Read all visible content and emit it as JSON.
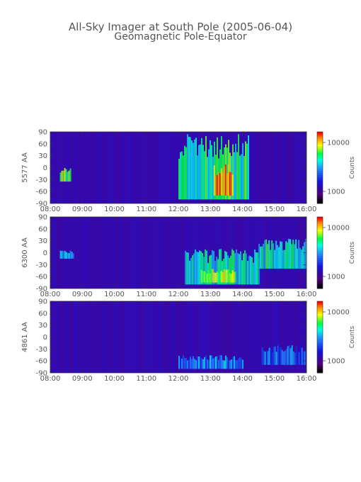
{
  "title": "All-Sky Imager at South Pole (2005-06-04)",
  "subtitle": "Geomagnetic Pole-Equator",
  "chart_data": [
    {
      "type": "heatmap",
      "ylabel": "5577 AA",
      "x_ticks": [
        "08:00",
        "09:00",
        "10:00",
        "11:00",
        "12:00",
        "13:00",
        "14:00",
        "15:00",
        "16:00"
      ],
      "xlim": [
        "08:00",
        "16:00"
      ],
      "y_ticks": [
        90,
        60,
        30,
        0,
        -30,
        -60,
        -90
      ],
      "ylim": [
        -90,
        90
      ],
      "colorbar": {
        "label": "Counts",
        "ticks": [
          "10000",
          "1000"
        ],
        "scale": "log"
      },
      "features": [
        {
          "t0": 8.3,
          "t1": 8.65,
          "lat0": -35,
          "lat1": 0,
          "level": 0.75
        },
        {
          "t0": 12.0,
          "t1": 14.2,
          "lat0": -80,
          "lat1": 90,
          "level": 0.65
        },
        {
          "t0": 13.1,
          "t1": 13.7,
          "lat0": -70,
          "lat1": 10,
          "level": 0.9
        }
      ]
    },
    {
      "type": "heatmap",
      "ylabel": "6300 AA",
      "x_ticks": [
        "08:00",
        "09:00",
        "10:00",
        "11:00",
        "12:00",
        "13:00",
        "14:00",
        "15:00",
        "16:00"
      ],
      "xlim": [
        "08:00",
        "16:00"
      ],
      "y_ticks": [
        90,
        60,
        30,
        0,
        -30,
        -60,
        -90
      ],
      "ylim": [
        -90,
        90
      ],
      "colorbar": {
        "label": "Counts",
        "ticks": [
          "10000",
          "1000"
        ],
        "scale": "log"
      },
      "features": [
        {
          "t0": 8.3,
          "t1": 8.7,
          "lat0": -15,
          "lat1": 5,
          "level": 0.55
        },
        {
          "t0": 12.2,
          "t1": 14.5,
          "lat0": -80,
          "lat1": 10,
          "level": 0.6
        },
        {
          "t0": 12.7,
          "t1": 13.8,
          "lat0": -75,
          "lat1": -40,
          "level": 0.75
        },
        {
          "t0": 14.5,
          "t1": 16.0,
          "lat0": -40,
          "lat1": 35,
          "level": 0.6
        }
      ]
    },
    {
      "type": "heatmap",
      "ylabel": "4861 AA",
      "x_ticks": [
        "08:00",
        "09:00",
        "10:00",
        "11:00",
        "12:00",
        "13:00",
        "14:00",
        "15:00",
        "16:00"
      ],
      "xlim": [
        "08:00",
        "16:00"
      ],
      "y_ticks": [
        90,
        60,
        30,
        0,
        -30,
        -60,
        -90
      ],
      "ylim": [
        -90,
        90
      ],
      "colorbar": {
        "label": "Counts",
        "ticks": [
          "10000",
          "1000"
        ],
        "scale": "log"
      },
      "features": [
        {
          "t0": 12.0,
          "t1": 14.0,
          "lat0": -80,
          "lat1": -45,
          "level": 0.45
        },
        {
          "t0": 14.6,
          "t1": 16.0,
          "lat0": -70,
          "lat1": -20,
          "level": 0.42
        }
      ]
    }
  ]
}
